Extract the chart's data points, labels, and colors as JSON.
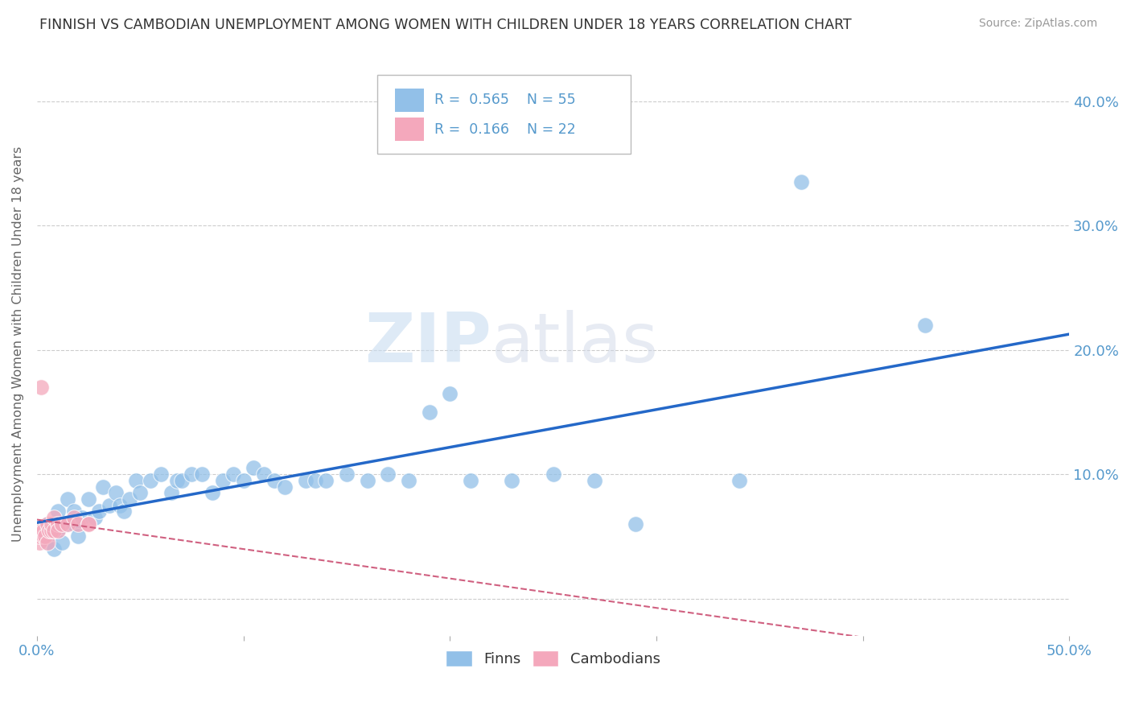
{
  "title": "FINNISH VS CAMBODIAN UNEMPLOYMENT AMONG WOMEN WITH CHILDREN UNDER 18 YEARS CORRELATION CHART",
  "source": "Source: ZipAtlas.com",
  "ylabel": "Unemployment Among Women with Children Under 18 years",
  "xlim": [
    0.0,
    0.5
  ],
  "ylim": [
    -0.03,
    0.44
  ],
  "r_finns": 0.565,
  "n_finns": 55,
  "r_cambodians": 0.166,
  "n_cambodians": 22,
  "legend_label_finns": "Finns",
  "legend_label_cambodians": "Cambodians",
  "color_finns": "#92C0E8",
  "color_cambodians": "#F4A8BC",
  "color_line_finns": "#2468C8",
  "color_line_cambodians": "#D06080",
  "color_grid": "#CCCCCC",
  "color_axis_labels": "#5599CC",
  "watermark_zip": "ZIP",
  "watermark_atlas": "atlas",
  "finns_x": [
    0.005,
    0.005,
    0.008,
    0.01,
    0.01,
    0.012,
    0.015,
    0.015,
    0.018,
    0.018,
    0.02,
    0.022,
    0.025,
    0.028,
    0.03,
    0.032,
    0.035,
    0.038,
    0.04,
    0.042,
    0.045,
    0.048,
    0.05,
    0.055,
    0.06,
    0.065,
    0.068,
    0.07,
    0.075,
    0.08,
    0.085,
    0.09,
    0.095,
    0.1,
    0.105,
    0.11,
    0.115,
    0.12,
    0.13,
    0.135,
    0.14,
    0.15,
    0.16,
    0.17,
    0.18,
    0.19,
    0.2,
    0.21,
    0.23,
    0.25,
    0.27,
    0.29,
    0.34,
    0.37,
    0.43
  ],
  "finns_y": [
    0.045,
    0.06,
    0.04,
    0.055,
    0.07,
    0.045,
    0.06,
    0.08,
    0.06,
    0.07,
    0.05,
    0.065,
    0.08,
    0.065,
    0.07,
    0.09,
    0.075,
    0.085,
    0.075,
    0.07,
    0.08,
    0.095,
    0.085,
    0.095,
    0.1,
    0.085,
    0.095,
    0.095,
    0.1,
    0.1,
    0.085,
    0.095,
    0.1,
    0.095,
    0.105,
    0.1,
    0.095,
    0.09,
    0.095,
    0.095,
    0.095,
    0.1,
    0.095,
    0.1,
    0.095,
    0.15,
    0.165,
    0.095,
    0.095,
    0.1,
    0.095,
    0.06,
    0.095,
    0.335,
    0.22
  ],
  "cambodians_x": [
    0.001,
    0.001,
    0.002,
    0.003,
    0.003,
    0.004,
    0.005,
    0.005,
    0.006,
    0.007,
    0.007,
    0.008,
    0.008,
    0.01,
    0.01,
    0.012,
    0.015,
    0.018,
    0.02,
    0.025,
    0.025,
    0.002
  ],
  "cambodians_y": [
    0.045,
    0.05,
    0.055,
    0.05,
    0.055,
    0.05,
    0.045,
    0.06,
    0.055,
    0.055,
    0.06,
    0.055,
    0.065,
    0.06,
    0.055,
    0.06,
    0.06,
    0.065,
    0.06,
    0.06,
    0.06,
    0.17
  ]
}
